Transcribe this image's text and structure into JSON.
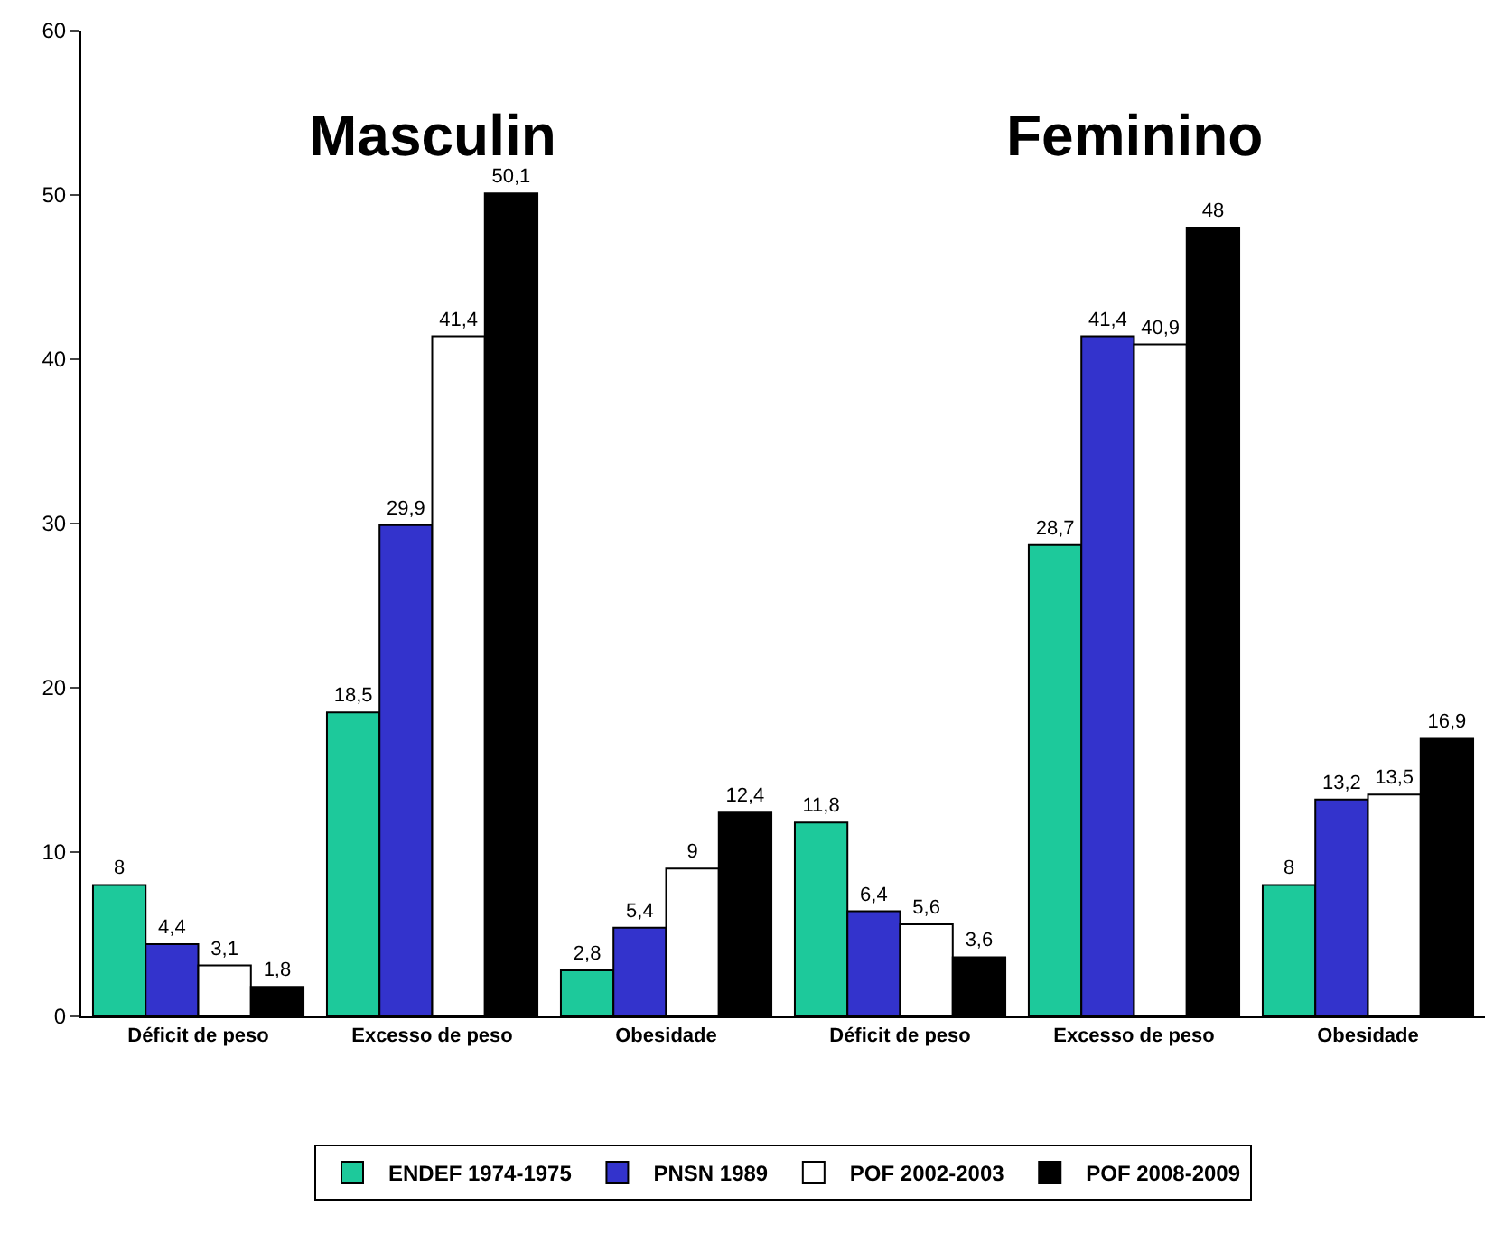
{
  "chart_data": {
    "type": "bar",
    "categories": [
      "Déficit de peso",
      "Excesso de peso",
      "Obesidade",
      "Déficit de peso",
      "Excesso de peso",
      "Obesidade"
    ],
    "series": [
      {
        "name": "ENDEF 1974-1975",
        "color": "#1dc99b",
        "values": [
          8,
          18.5,
          2.8,
          11.8,
          28.7,
          8
        ],
        "value_labels": [
          "8",
          "18,5",
          "2,8",
          "11,8",
          "28,7",
          "8"
        ]
      },
      {
        "name": "PNSN 1989",
        "color": "#3333cc",
        "values": [
          4.4,
          29.9,
          5.4,
          6.4,
          41.4,
          13.2
        ],
        "value_labels": [
          "4,4",
          "29,9",
          "5,4",
          "6,4",
          "41,4",
          "13,2"
        ]
      },
      {
        "name": "POF 2002-2003",
        "color": "#ffffff",
        "values": [
          3.1,
          41.4,
          9,
          5.6,
          40.9,
          13.5
        ],
        "value_labels": [
          "3,1",
          "41,4",
          "9",
          "5,6",
          "40,9",
          "13,5"
        ]
      },
      {
        "name": "POF 2008-2009",
        "color": "#000000",
        "values": [
          1.8,
          50.1,
          12.4,
          3.6,
          48,
          16.9
        ],
        "value_labels": [
          "1,8",
          "50,1",
          "12,4",
          "3,6",
          "48",
          "16,9"
        ]
      }
    ],
    "annotations": [
      "Masculin",
      "Feminino"
    ],
    "ylim": [
      0,
      60
    ],
    "yticks": [
      0,
      10,
      20,
      30,
      40,
      50,
      60
    ],
    "legend": "bottom"
  }
}
